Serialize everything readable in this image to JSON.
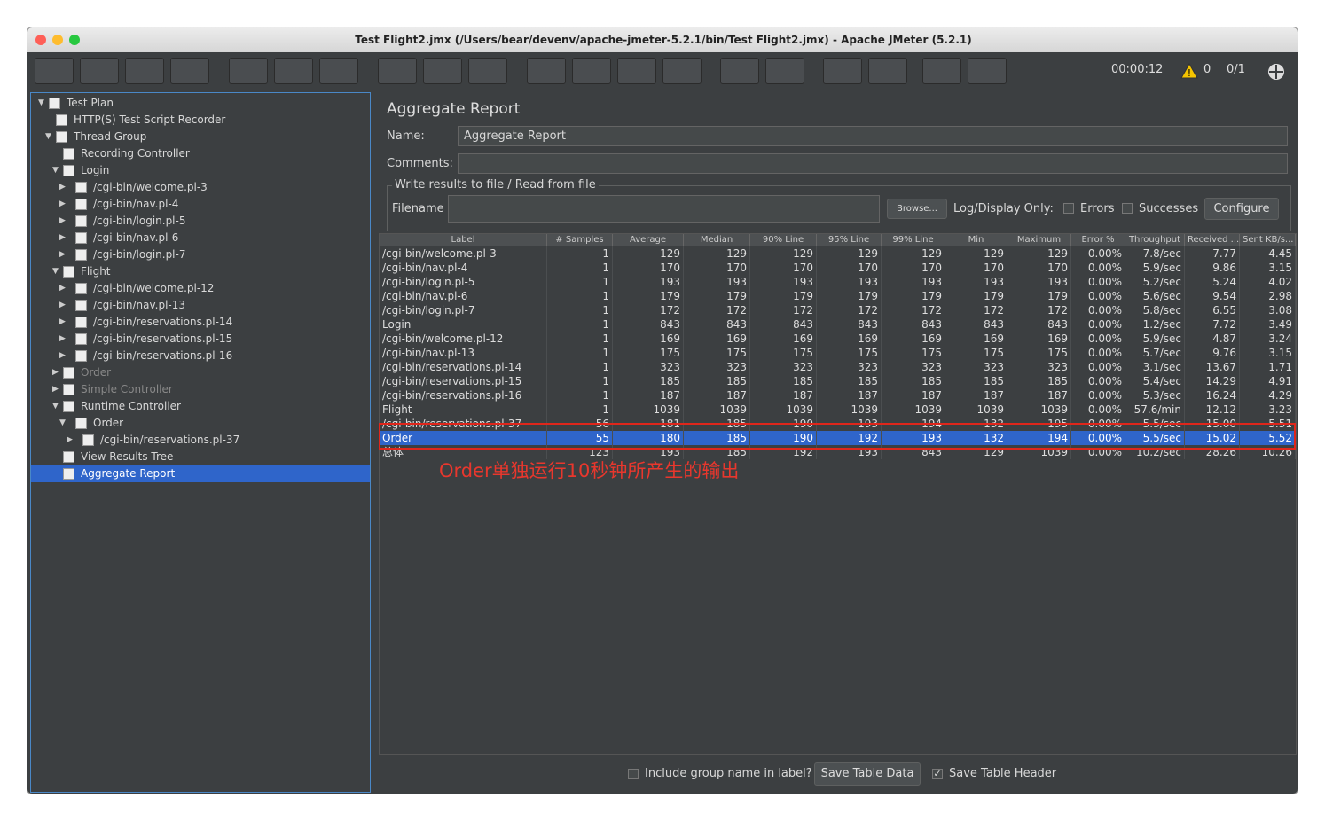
{
  "window": {
    "title": "Test Flight2.jmx (/Users/bear/devenv/apache-jmeter-5.2.1/bin/Test Flight2.jmx) - Apache JMeter (5.2.1)"
  },
  "toolbar": {
    "timer": "00:00:12",
    "warnings": "0",
    "threads": "0/1"
  },
  "tree": {
    "nodes": [
      {
        "label": "Test Plan",
        "depth": 0,
        "arrow": "open"
      },
      {
        "label": "HTTP(S) Test Script Recorder",
        "depth": 1,
        "arrow": "none"
      },
      {
        "label": "Thread Group",
        "depth": 1,
        "arrow": "open"
      },
      {
        "label": "Recording Controller",
        "depth": 2,
        "arrow": "none"
      },
      {
        "label": "Login",
        "depth": 2,
        "arrow": "open"
      },
      {
        "label": "/cgi-bin/welcome.pl-3",
        "depth": 3,
        "arrow": "closed"
      },
      {
        "label": "/cgi-bin/nav.pl-4",
        "depth": 3,
        "arrow": "closed"
      },
      {
        "label": "/cgi-bin/login.pl-5",
        "depth": 3,
        "arrow": "closed"
      },
      {
        "label": "/cgi-bin/nav.pl-6",
        "depth": 3,
        "arrow": "closed"
      },
      {
        "label": "/cgi-bin/login.pl-7",
        "depth": 3,
        "arrow": "closed"
      },
      {
        "label": "Flight",
        "depth": 2,
        "arrow": "open"
      },
      {
        "label": "/cgi-bin/welcome.pl-12",
        "depth": 3,
        "arrow": "closed"
      },
      {
        "label": "/cgi-bin/nav.pl-13",
        "depth": 3,
        "arrow": "closed"
      },
      {
        "label": "/cgi-bin/reservations.pl-14",
        "depth": 3,
        "arrow": "closed"
      },
      {
        "label": "/cgi-bin/reservations.pl-15",
        "depth": 3,
        "arrow": "closed"
      },
      {
        "label": "/cgi-bin/reservations.pl-16",
        "depth": 3,
        "arrow": "closed"
      },
      {
        "label": "Order",
        "depth": 2,
        "arrow": "closed",
        "disabled": true
      },
      {
        "label": "Simple Controller",
        "depth": 2,
        "arrow": "closed",
        "disabled": true
      },
      {
        "label": "Runtime Controller",
        "depth": 2,
        "arrow": "open"
      },
      {
        "label": "Order",
        "depth": 3,
        "arrow": "open"
      },
      {
        "label": "/cgi-bin/reservations.pl-37",
        "depth": 4,
        "arrow": "closed"
      },
      {
        "label": "View Results Tree",
        "depth": 2,
        "arrow": "none"
      },
      {
        "label": "Aggregate Report",
        "depth": 2,
        "arrow": "none",
        "selected": true
      }
    ]
  },
  "panel": {
    "title": "Aggregate Report",
    "name_label": "Name:",
    "name_value": "Aggregate Report",
    "comments_label": "Comments:",
    "file_group": "Write results to file / Read from file",
    "filename_label": "Filename",
    "browse": "Browse...",
    "log_label": "Log/Display Only:",
    "errors": "Errors",
    "successes": "Successes",
    "configure": "Configure"
  },
  "table": {
    "headers": [
      "Label",
      "# Samples",
      "Average",
      "Median",
      "90% Line",
      "95% Line",
      "99% Line",
      "Min",
      "Maximum",
      "Error %",
      "Throughput",
      "Received ...",
      "Sent KB/s..."
    ],
    "rows": [
      [
        "/cgi-bin/welcome.pl-3",
        "1",
        "129",
        "129",
        "129",
        "129",
        "129",
        "129",
        "129",
        "0.00%",
        "7.8/sec",
        "7.77",
        "4.45"
      ],
      [
        "/cgi-bin/nav.pl-4",
        "1",
        "170",
        "170",
        "170",
        "170",
        "170",
        "170",
        "170",
        "0.00%",
        "5.9/sec",
        "9.86",
        "3.15"
      ],
      [
        "/cgi-bin/login.pl-5",
        "1",
        "193",
        "193",
        "193",
        "193",
        "193",
        "193",
        "193",
        "0.00%",
        "5.2/sec",
        "5.24",
        "4.02"
      ],
      [
        "/cgi-bin/nav.pl-6",
        "1",
        "179",
        "179",
        "179",
        "179",
        "179",
        "179",
        "179",
        "0.00%",
        "5.6/sec",
        "9.54",
        "2.98"
      ],
      [
        "/cgi-bin/login.pl-7",
        "1",
        "172",
        "172",
        "172",
        "172",
        "172",
        "172",
        "172",
        "0.00%",
        "5.8/sec",
        "6.55",
        "3.08"
      ],
      [
        "Login",
        "1",
        "843",
        "843",
        "843",
        "843",
        "843",
        "843",
        "843",
        "0.00%",
        "1.2/sec",
        "7.72",
        "3.49"
      ],
      [
        "/cgi-bin/welcome.pl-12",
        "1",
        "169",
        "169",
        "169",
        "169",
        "169",
        "169",
        "169",
        "0.00%",
        "5.9/sec",
        "4.87",
        "3.24"
      ],
      [
        "/cgi-bin/nav.pl-13",
        "1",
        "175",
        "175",
        "175",
        "175",
        "175",
        "175",
        "175",
        "0.00%",
        "5.7/sec",
        "9.76",
        "3.15"
      ],
      [
        "/cgi-bin/reservations.pl-14",
        "1",
        "323",
        "323",
        "323",
        "323",
        "323",
        "323",
        "323",
        "0.00%",
        "3.1/sec",
        "13.67",
        "1.71"
      ],
      [
        "/cgi-bin/reservations.pl-15",
        "1",
        "185",
        "185",
        "185",
        "185",
        "185",
        "185",
        "185",
        "0.00%",
        "5.4/sec",
        "14.29",
        "4.91"
      ],
      [
        "/cgi-bin/reservations.pl-16",
        "1",
        "187",
        "187",
        "187",
        "187",
        "187",
        "187",
        "187",
        "0.00%",
        "5.3/sec",
        "16.24",
        "4.29"
      ],
      [
        "Flight",
        "1",
        "1039",
        "1039",
        "1039",
        "1039",
        "1039",
        "1039",
        "1039",
        "0.00%",
        "57.6/min",
        "12.12",
        "3.23"
      ],
      [
        "/cgi-bin/reservations.pl-37",
        "56",
        "181",
        "185",
        "190",
        "193",
        "194",
        "132",
        "195",
        "0.00%",
        "5.5/sec",
        "15.00",
        "5.51"
      ],
      [
        "Order",
        "55",
        "180",
        "185",
        "190",
        "192",
        "193",
        "132",
        "194",
        "0.00%",
        "5.5/sec",
        "15.02",
        "5.52"
      ],
      [
        "总体",
        "123",
        "193",
        "185",
        "192",
        "193",
        "843",
        "129",
        "1039",
        "0.00%",
        "10.2/sec",
        "28.26",
        "10.26"
      ]
    ],
    "selected_row": 13
  },
  "annotation": "Order单独运行10秒钟所产生的输出",
  "footer": {
    "include_group": "Include group name in label?",
    "save_data": "Save Table Data",
    "save_header": "Save Table Header"
  }
}
